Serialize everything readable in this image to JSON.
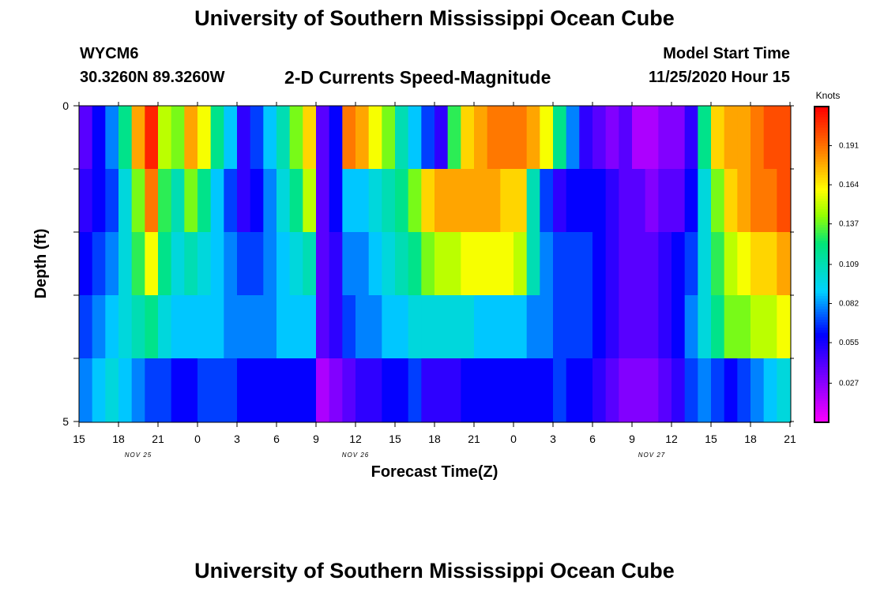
{
  "header": {
    "title": "University of Southern Mississippi Ocean Cube",
    "station_id": "WYCM6",
    "station_coords": "30.3260N 89.3260W",
    "subtitle": "2-D Currents Speed-Magnitude",
    "model_label": "Model Start Time",
    "model_time": "11/25/2020 Hour 15"
  },
  "footer": {
    "title": "University of Southern Mississippi Ocean Cube"
  },
  "chart_data": {
    "type": "heatmap",
    "title": "2-D Currents Speed-Magnitude",
    "xlabel": "Forecast Time(Z)",
    "ylabel": "Depth (ft)",
    "x_tick_labels": [
      "15",
      "18",
      "21",
      "0",
      "3",
      "6",
      "9",
      "12",
      "15",
      "18",
      "21",
      "0",
      "3",
      "6",
      "9",
      "12",
      "15",
      "18",
      "21"
    ],
    "date_labels": [
      {
        "label": "NOV 25",
        "tick_index": 1.5
      },
      {
        "label": "NOV 26",
        "tick_index": 7
      },
      {
        "label": "NOV 27",
        "tick_index": 14.5
      }
    ],
    "y_tick_labels": [
      "0",
      "5"
    ],
    "ylim": [
      0,
      5
    ],
    "x_hours": 54,
    "depth_layers": 5,
    "colorbar": {
      "label": "Knots",
      "ticks": [
        "0.191",
        "0.164",
        "0.137",
        "0.109",
        "0.082",
        "0.055",
        "0.027"
      ],
      "range": [
        0,
        0.218
      ]
    },
    "rows": [
      {
        "depth_range": "0-1 ft",
        "values": [
          0.04,
          0.06,
          0.08,
          0.12,
          0.18,
          0.21,
          0.15,
          0.14,
          0.18,
          0.16,
          0.12,
          0.09,
          0.05,
          0.07,
          0.09,
          0.11,
          0.14,
          0.17,
          0.04,
          0.06,
          0.19,
          0.18,
          0.16,
          0.14,
          0.11,
          0.09,
          0.07,
          0.05,
          0.13,
          0.17,
          0.18,
          0.19,
          0.19,
          0.19,
          0.18,
          0.16,
          0.12,
          0.08,
          0.05,
          0.04,
          0.03,
          0.04,
          0.02,
          0.02,
          0.03,
          0.03,
          0.05,
          0.12,
          0.17,
          0.18,
          0.18,
          0.19,
          0.2,
          0.2
        ]
      },
      {
        "depth_range": "1-2 ft",
        "values": [
          0.05,
          0.06,
          0.07,
          0.1,
          0.14,
          0.19,
          0.13,
          0.11,
          0.14,
          0.12,
          0.09,
          0.07,
          0.05,
          0.06,
          0.08,
          0.1,
          0.12,
          0.15,
          0.04,
          0.06,
          0.09,
          0.09,
          0.1,
          0.11,
          0.12,
          0.14,
          0.17,
          0.18,
          0.18,
          0.18,
          0.18,
          0.18,
          0.17,
          0.17,
          0.11,
          0.07,
          0.05,
          0.06,
          0.06,
          0.06,
          0.05,
          0.04,
          0.04,
          0.03,
          0.04,
          0.04,
          0.06,
          0.1,
          0.14,
          0.17,
          0.18,
          0.19,
          0.19,
          0.2
        ]
      },
      {
        "depth_range": "2-3 ft",
        "values": [
          0.06,
          0.07,
          0.08,
          0.1,
          0.13,
          0.16,
          0.12,
          0.1,
          0.11,
          0.1,
          0.09,
          0.08,
          0.07,
          0.07,
          0.08,
          0.09,
          0.1,
          0.11,
          0.04,
          0.05,
          0.08,
          0.08,
          0.09,
          0.1,
          0.11,
          0.12,
          0.14,
          0.15,
          0.15,
          0.16,
          0.16,
          0.16,
          0.16,
          0.15,
          0.11,
          0.08,
          0.07,
          0.07,
          0.07,
          0.06,
          0.05,
          0.04,
          0.04,
          0.04,
          0.05,
          0.06,
          0.07,
          0.1,
          0.13,
          0.15,
          0.16,
          0.17,
          0.17,
          0.18
        ]
      },
      {
        "depth_range": "3-4 ft",
        "values": [
          0.07,
          0.08,
          0.09,
          0.1,
          0.11,
          0.12,
          0.1,
          0.09,
          0.09,
          0.09,
          0.09,
          0.08,
          0.08,
          0.08,
          0.08,
          0.09,
          0.09,
          0.09,
          0.04,
          0.05,
          0.07,
          0.08,
          0.08,
          0.09,
          0.09,
          0.1,
          0.1,
          0.1,
          0.1,
          0.1,
          0.09,
          0.09,
          0.09,
          0.09,
          0.08,
          0.08,
          0.07,
          0.07,
          0.07,
          0.06,
          0.05,
          0.04,
          0.04,
          0.04,
          0.05,
          0.06,
          0.08,
          0.1,
          0.12,
          0.14,
          0.14,
          0.15,
          0.15,
          0.16
        ]
      },
      {
        "depth_range": "4-5 ft",
        "values": [
          0.08,
          0.09,
          0.1,
          0.09,
          0.08,
          0.07,
          0.07,
          0.06,
          0.06,
          0.07,
          0.07,
          0.07,
          0.06,
          0.06,
          0.06,
          0.06,
          0.06,
          0.06,
          0.02,
          0.03,
          0.04,
          0.05,
          0.05,
          0.06,
          0.06,
          0.07,
          0.05,
          0.05,
          0.05,
          0.06,
          0.06,
          0.06,
          0.06,
          0.06,
          0.06,
          0.06,
          0.07,
          0.06,
          0.06,
          0.05,
          0.04,
          0.03,
          0.03,
          0.03,
          0.04,
          0.05,
          0.07,
          0.08,
          0.07,
          0.06,
          0.07,
          0.08,
          0.09,
          0.1
        ]
      }
    ]
  }
}
